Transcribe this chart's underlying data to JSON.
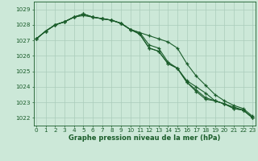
{
  "xlabel": "Graphe pression niveau de la mer (hPa)",
  "bg_color": "#cce8d8",
  "grid_color": "#aaccbb",
  "line_color": "#1a5c2a",
  "hours": [
    0,
    1,
    2,
    3,
    4,
    5,
    6,
    7,
    8,
    9,
    10,
    11,
    12,
    13,
    14,
    15,
    16,
    17,
    18,
    19,
    20,
    21,
    22,
    23
  ],
  "series1": [
    1027.1,
    1027.6,
    1028.0,
    1028.2,
    1028.5,
    1028.6,
    1028.5,
    1028.4,
    1028.3,
    1028.1,
    1027.7,
    1027.5,
    1027.3,
    1027.1,
    1026.9,
    1026.5,
    1025.5,
    1024.7,
    1024.1,
    1023.5,
    1023.1,
    1022.8,
    1022.6,
    1022.1
  ],
  "series2": [
    1027.1,
    1027.6,
    1028.0,
    1028.2,
    1028.5,
    1028.7,
    1028.5,
    1028.4,
    1028.3,
    1028.1,
    1027.7,
    1027.5,
    1026.7,
    1026.5,
    1025.6,
    1025.2,
    1024.4,
    1024.0,
    1023.6,
    1023.1,
    1022.9,
    1022.7,
    1022.5,
    1022.0
  ],
  "series3": [
    1027.1,
    1027.6,
    1028.0,
    1028.2,
    1028.5,
    1028.7,
    1028.5,
    1028.4,
    1028.3,
    1028.1,
    1027.7,
    1027.4,
    1026.5,
    1026.3,
    1025.5,
    1025.2,
    1024.3,
    1023.8,
    1023.3,
    1023.1,
    1022.9,
    1022.6,
    1022.5,
    1022.0
  ],
  "series4": [
    1027.1,
    1027.6,
    1028.0,
    1028.2,
    1028.5,
    1028.7,
    1028.5,
    1028.4,
    1028.3,
    1028.1,
    1027.7,
    1027.4,
    1026.5,
    1026.3,
    1025.5,
    1025.2,
    1024.3,
    1023.7,
    1023.2,
    1023.1,
    1022.9,
    1022.6,
    1022.5,
    1022.0
  ],
  "ylim_min": 1021.5,
  "ylim_max": 1029.5,
  "yticks": [
    1022,
    1023,
    1024,
    1025,
    1026,
    1027,
    1028,
    1029
  ],
  "xlim_min": -0.3,
  "xlim_max": 23.3,
  "tick_fontsize": 5.2,
  "xlabel_fontsize": 6.0
}
